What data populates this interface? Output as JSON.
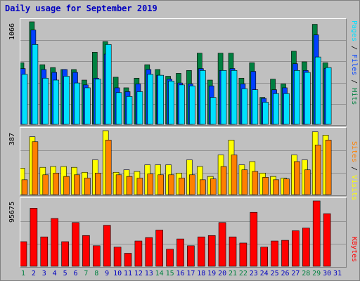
{
  "title": "Daily usage for September 2019",
  "colors": {
    "hits": "#008040",
    "files": "#0040ff",
    "pages": "#00e0ff",
    "visits": "#ffff00",
    "sites": "#ff8000",
    "kbytes": "#ff0000",
    "weekend_day": "#008040",
    "weekday": "#0000c0",
    "sep": "#000000"
  },
  "chart_data": [
    {
      "type": "bar",
      "name": "hits-files-pages",
      "ymax_label": "1066",
      "ylim": [
        0,
        1066
      ],
      "right_label": {
        "pages": "Pages",
        "files": "Files",
        "hits": "Hits",
        "sep": " / "
      },
      "categories": [
        "1",
        "2",
        "3",
        "4",
        "5",
        "6",
        "7",
        "8",
        "9",
        "10",
        "11",
        "12",
        "13",
        "14",
        "15",
        "16",
        "17",
        "18",
        "19",
        "20",
        "21",
        "22",
        "23",
        "24",
        "25",
        "26",
        "27",
        "28",
        "29",
        "30",
        "31"
      ],
      "series": [
        {
          "name": "Hits",
          "values": [
            640,
            1066,
            620,
            590,
            570,
            570,
            460,
            750,
            860,
            490,
            380,
            480,
            620,
            570,
            500,
            530,
            560,
            740,
            460,
            740,
            740,
            480,
            640,
            280,
            470,
            420,
            760,
            650,
            1040,
            640,
            0
          ]
        },
        {
          "name": "Files",
          "values": [
            580,
            980,
            570,
            540,
            570,
            540,
            410,
            480,
            730,
            380,
            340,
            420,
            570,
            510,
            470,
            430,
            420,
            580,
            400,
            560,
            580,
            420,
            550,
            270,
            360,
            380,
            630,
            560,
            930,
            580,
            0
          ]
        },
        {
          "name": "Pages",
          "values": [
            520,
            830,
            480,
            460,
            500,
            430,
            380,
            470,
            830,
            330,
            290,
            340,
            520,
            510,
            450,
            410,
            400,
            560,
            280,
            560,
            560,
            370,
            360,
            230,
            320,
            320,
            560,
            540,
            700,
            590,
            0
          ]
        }
      ]
    },
    {
      "type": "bar",
      "name": "visits-sites",
      "ymax_label": "387",
      "ylim": [
        0,
        387
      ],
      "right_label": {
        "sites": "Sites",
        "visits": "Visits",
        "sep": " / "
      },
      "categories": [
        "1",
        "2",
        "3",
        "4",
        "5",
        "6",
        "7",
        "8",
        "9",
        "10",
        "11",
        "12",
        "13",
        "14",
        "15",
        "16",
        "17",
        "18",
        "19",
        "20",
        "21",
        "22",
        "23",
        "24",
        "25",
        "26",
        "27",
        "28",
        "29",
        "30",
        "31"
      ],
      "series": [
        {
          "name": "Visits",
          "values": [
            160,
            350,
            165,
            170,
            170,
            165,
            135,
            210,
            387,
            135,
            150,
            140,
            180,
            180,
            180,
            130,
            210,
            170,
            110,
            240,
            330,
            180,
            200,
            130,
            110,
            100,
            240,
            210,
            380,
            360,
            0
          ]
        },
        {
          "name": "Sites",
          "values": [
            90,
            320,
            120,
            130,
            110,
            120,
            100,
            130,
            330,
            120,
            110,
            100,
            125,
            120,
            120,
            100,
            120,
            90,
            95,
            170,
            240,
            150,
            140,
            105,
            90,
            95,
            200,
            150,
            300,
            330,
            0
          ]
        }
      ]
    },
    {
      "type": "bar",
      "name": "kbytes",
      "ymax_label": "95675",
      "ylim": [
        0,
        95675
      ],
      "right_label": {
        "kbytes": "KBytes"
      },
      "categories": [
        "1",
        "2",
        "3",
        "4",
        "5",
        "6",
        "7",
        "8",
        "9",
        "10",
        "11",
        "12",
        "13",
        "14",
        "15",
        "16",
        "17",
        "18",
        "19",
        "20",
        "21",
        "22",
        "23",
        "24",
        "25",
        "26",
        "27",
        "28",
        "29",
        "30",
        "31"
      ],
      "series": [
        {
          "name": "KBytes",
          "values": [
            36000,
            85000,
            43000,
            70000,
            36000,
            64000,
            45000,
            30000,
            60000,
            28000,
            19000,
            37000,
            42000,
            53000,
            25000,
            40000,
            30000,
            43000,
            45000,
            64000,
            43000,
            34000,
            79000,
            28000,
            37000,
            38000,
            52000,
            56000,
            95675,
            77000,
            0
          ]
        }
      ]
    }
  ],
  "x_axis": {
    "days": [
      "1",
      "2",
      "3",
      "4",
      "5",
      "6",
      "7",
      "8",
      "9",
      "10",
      "11",
      "12",
      "13",
      "14",
      "15",
      "16",
      "17",
      "18",
      "19",
      "20",
      "21",
      "22",
      "23",
      "24",
      "25",
      "26",
      "27",
      "28",
      "29",
      "30",
      "31"
    ],
    "weekend_days": [
      "1",
      "7",
      "8",
      "14",
      "15",
      "21",
      "22",
      "28",
      "29"
    ]
  }
}
